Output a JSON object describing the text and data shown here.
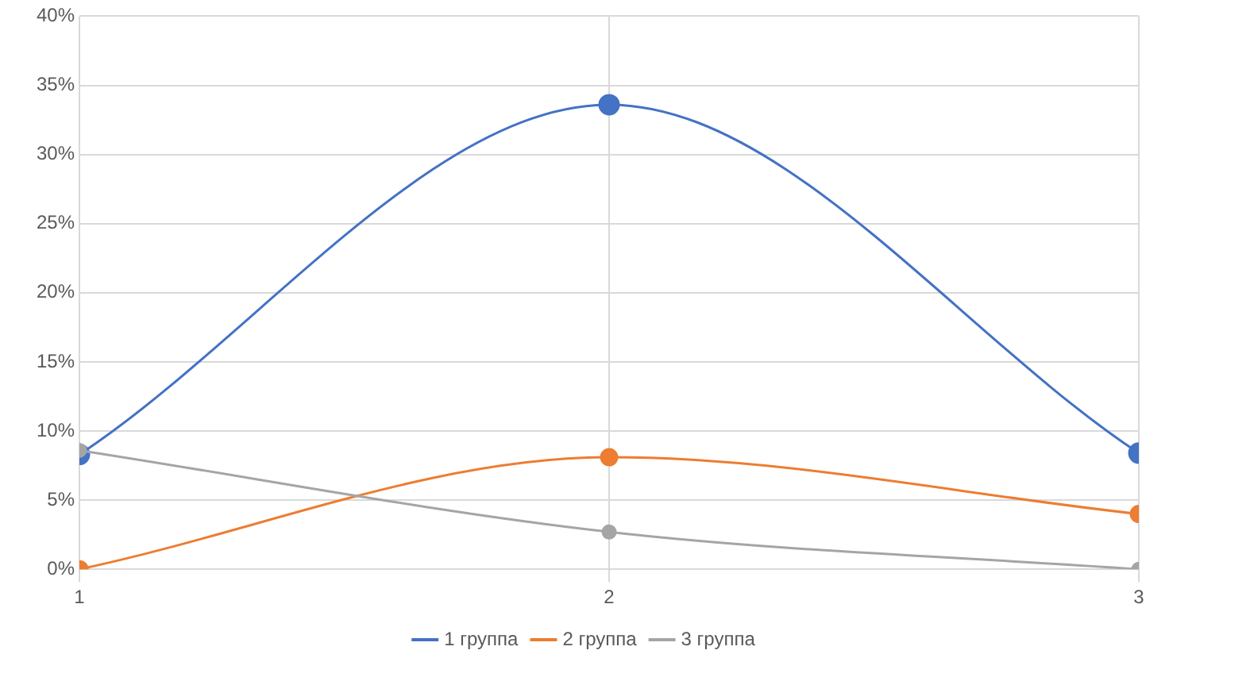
{
  "chart_data": {
    "type": "line",
    "x": [
      1,
      2,
      3
    ],
    "xlim": [
      1,
      3
    ],
    "xticks": [
      1,
      2,
      3
    ],
    "ylim": [
      0,
      40
    ],
    "yticks": [
      {
        "value": 0,
        "label": "0%"
      },
      {
        "value": 5,
        "label": "5%"
      },
      {
        "value": 10,
        "label": "10%"
      },
      {
        "value": 15,
        "label": "15%"
      },
      {
        "value": 20,
        "label": "20%"
      },
      {
        "value": 25,
        "label": "25%"
      },
      {
        "value": 30,
        "label": "30%"
      },
      {
        "value": 35,
        "label": "35%"
      },
      {
        "value": 40,
        "label": "40%"
      }
    ],
    "grid": true,
    "legend": "bottom",
    "marker": "circle",
    "line_style": "solid",
    "series": [
      {
        "name": "1 группа",
        "color": "#4472c4",
        "values": [
          8.3,
          33.6,
          8.4
        ]
      },
      {
        "name": "2 группа",
        "color": "#ed7d31",
        "values": [
          0,
          8.1,
          4.0
        ]
      },
      {
        "name": "3 группа",
        "color": "#a5a5a5",
        "values": [
          8.6,
          2.7,
          0
        ]
      }
    ]
  }
}
